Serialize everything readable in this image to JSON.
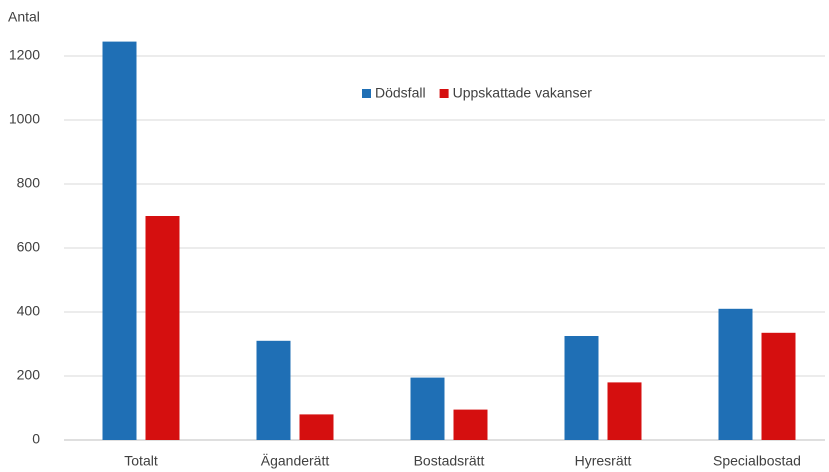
{
  "chart_data": {
    "type": "bar",
    "y_axis_label": "Antal",
    "categories": [
      "Totalt",
      "Äganderätt",
      "Bostadsrätt",
      "Hyresrätt",
      "Specialbostad"
    ],
    "series": [
      {
        "name": "Dödsfall",
        "color": "#1f6fb5",
        "values": [
          1245,
          310,
          195,
          325,
          410
        ]
      },
      {
        "name": "Uppskattade vakanser",
        "color": "#d50f0f",
        "values": [
          700,
          80,
          95,
          180,
          335
        ]
      }
    ],
    "ylim": [
      0,
      1300
    ],
    "yticks": [
      0,
      200,
      400,
      600,
      800,
      1000,
      1200
    ],
    "grid": true,
    "legend": "top"
  }
}
